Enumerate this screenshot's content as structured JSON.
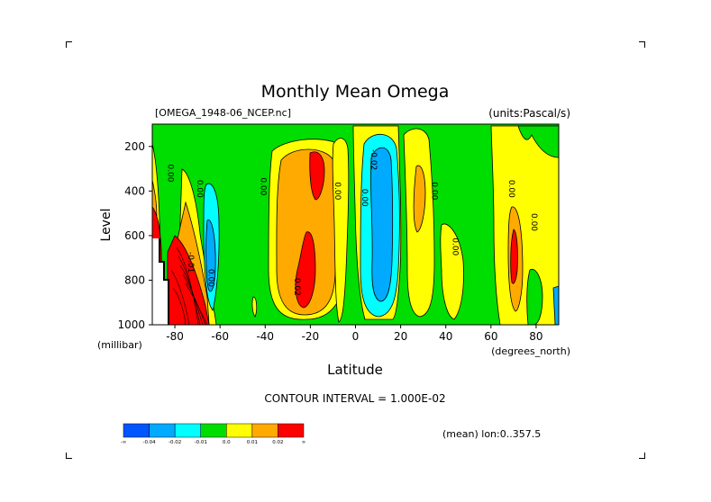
{
  "chart_data": {
    "type": "heatmap",
    "title": "Monthly Mean Omega",
    "file_label": "[OMEGA_1948-06_NCEP.nc]",
    "units_label": "(units:Pascal/s)",
    "ylabel": "Level",
    "y_unit_label": "(millibar)",
    "xlabel": "Latitude",
    "x_unit_label": "(degrees_north)",
    "xlim": [
      -90,
      90
    ],
    "ylim": [
      1000,
      100
    ],
    "x_ticks": [
      -80,
      -60,
      -40,
      -20,
      0,
      20,
      40,
      60,
      80
    ],
    "y_ticks": [
      200,
      400,
      600,
      800,
      1000
    ],
    "contour_interval_text": "CONTOUR INTERVAL = 1.000E-02",
    "mean_text": "(mean) lon:0..357.5",
    "colorbar": {
      "colors": [
        "#0055ff",
        "#00aaff",
        "#00ffff",
        "#00dd00",
        "#ffff00",
        "#ffaa00",
        "#ff0000"
      ],
      "labels": [
        "-∞",
        "-0.04",
        "-0.02",
        "-0.01",
        "0.0",
        "0.01",
        "0.02",
        "∞"
      ]
    },
    "contour_labels": [
      {
        "text": "0.00",
        "lat": -83,
        "lev": 320
      },
      {
        "text": "0.00",
        "lat": -70,
        "lev": 390
      },
      {
        "text": "0.00",
        "lat": -42,
        "lev": 380
      },
      {
        "text": "-0.01",
        "lat": -74,
        "lev": 720
      },
      {
        "text": "0.00",
        "lat": -65,
        "lev": 790
      },
      {
        "text": "0.02",
        "lat": -27,
        "lev": 830
      },
      {
        "text": "0.00",
        "lat": -9,
        "lev": 400
      },
      {
        "text": "0.00",
        "lat": 3,
        "lev": 430
      },
      {
        "text": "-0.02",
        "lat": 7,
        "lev": 260
      },
      {
        "text": "0.00",
        "lat": 34,
        "lev": 400
      },
      {
        "text": "0.00",
        "lat": 43,
        "lev": 650
      },
      {
        "text": "0.00",
        "lat": 68,
        "lev": 390
      },
      {
        "text": "0.00",
        "lat": 78,
        "lev": 540
      }
    ]
  }
}
